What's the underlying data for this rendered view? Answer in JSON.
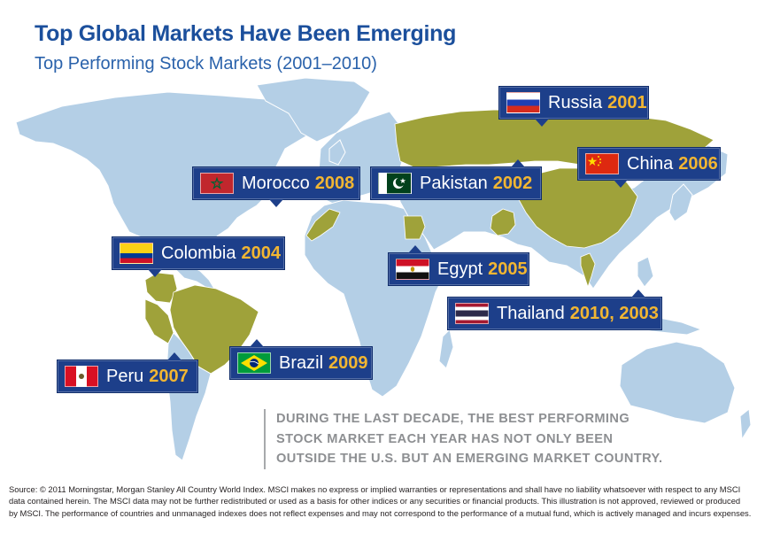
{
  "title": "Top Global Markets Have Been Emerging",
  "subtitle": "Top Performing Stock Markets (2001–2010)",
  "colors": {
    "title": "#1b4f9c",
    "ocean": "#ffffff",
    "land": "#b4cfe6",
    "highlight": "#9fa23a",
    "callout": "#1d3f8a",
    "year": "#f2b632",
    "note": "#8d8f92"
  },
  "markets": [
    {
      "country": "Russia",
      "year": "2001",
      "flag": "russia-flag"
    },
    {
      "country": "Pakistan",
      "year": "2002",
      "flag": "pakistan-flag"
    },
    {
      "country": "Colombia",
      "year": "2004",
      "flag": "colombia-flag"
    },
    {
      "country": "Egypt",
      "year": "2005",
      "flag": "egypt-flag"
    },
    {
      "country": "China",
      "year": "2006",
      "flag": "china-flag"
    },
    {
      "country": "Peru",
      "year": "2007",
      "flag": "peru-flag"
    },
    {
      "country": "Morocco",
      "year": "2008",
      "flag": "morocco-flag"
    },
    {
      "country": "Brazil",
      "year": "2009",
      "flag": "brazil-flag"
    },
    {
      "country": "Thailand",
      "year": "2010, 2003",
      "flag": "thailand-flag"
    }
  ],
  "note": {
    "line1": "DURING THE LAST DECADE, THE BEST PERFORMING",
    "line2": "STOCK MARKET EACH YEAR HAS NOT ONLY BEEN",
    "line3": "OUTSIDE THE U.S. BUT AN EMERGING MARKET COUNTRY."
  },
  "source": {
    "line1": "Source: © 2011 Morningstar, Morgan Stanley All Country World Index. MSCI makes no express or implied warranties or representations and shall have no liability whatsoever with respect to any MSCI",
    "line2": "data contained herein. The MSCI data may not be further redistributed or used as a basis for other indices or any securities or financial products. This illustration is not approved, reviewed or produced",
    "line3": "by MSCI. The performance of countries and unmanaged indexes does not reflect expenses and may not correspond to the performance of a mutual fund, which is actively managed and incurs expenses."
  }
}
